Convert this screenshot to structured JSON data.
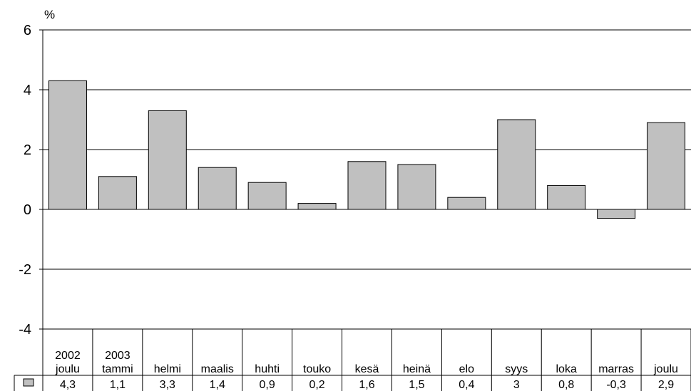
{
  "chart_data": {
    "type": "bar",
    "title": "",
    "ylabel": "%",
    "xlabel": "",
    "ylim": [
      -4,
      6
    ],
    "yticks": [
      6,
      4,
      2,
      0,
      -2,
      -4
    ],
    "grid": true,
    "legend": "data-table",
    "categories": [
      [
        "2002",
        "joulu"
      ],
      [
        "2003",
        "tammi"
      ],
      [
        "helmi"
      ],
      [
        "maalis"
      ],
      [
        "huhti"
      ],
      [
        "touko"
      ],
      [
        "kesä"
      ],
      [
        "heinä"
      ],
      [
        "elo"
      ],
      [
        "syys"
      ],
      [
        "loka"
      ],
      [
        "marras"
      ],
      [
        "joulu"
      ]
    ],
    "series": [
      {
        "values": [
          4.3,
          1.1,
          3.3,
          1.4,
          0.9,
          0.2,
          1.6,
          1.5,
          0.4,
          3.0,
          0.8,
          -0.3,
          2.9
        ],
        "labels": [
          "4,3",
          "1,1",
          "3,3",
          "1,4",
          "0,9",
          "0,2",
          "1,6",
          "1,5",
          "0,4",
          "3",
          "0,8",
          "-0,3",
          "2,9"
        ],
        "color": "#c0c0c0"
      }
    ],
    "colors": {
      "bar_fill": "#c0c0c0",
      "bar_stroke": "#000000",
      "grid": "#000000"
    }
  }
}
